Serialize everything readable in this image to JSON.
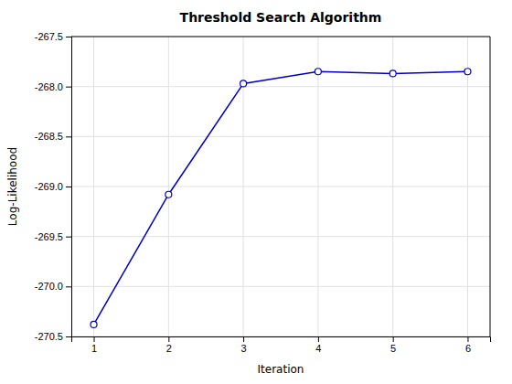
{
  "chart_data": {
    "type": "line",
    "title": "Threshold Search Algorithm",
    "xlabel": "Iteration",
    "ylabel": "Log-Likelihood",
    "x": [
      1,
      2,
      3,
      4,
      5,
      6
    ],
    "values": [
      -270.38,
      -269.08,
      -267.97,
      -267.85,
      -267.87,
      -267.85
    ],
    "color": "#0000CC",
    "marker": "circle",
    "grid": true,
    "xlim": [
      0.7,
      6.3
    ],
    "ylim": [
      -270.5,
      -267.5
    ],
    "xticks": [
      1,
      2,
      3,
      4,
      5,
      6
    ],
    "yticks": [
      -270.5,
      {
        "value": -270.0,
        "label": "-270.0"
      },
      -269.5,
      {
        "value": -269.0,
        "label": "-269.0"
      },
      -268.5,
      {
        "value": -268.0,
        "label": "-268.0"
      },
      -267.5
    ]
  }
}
